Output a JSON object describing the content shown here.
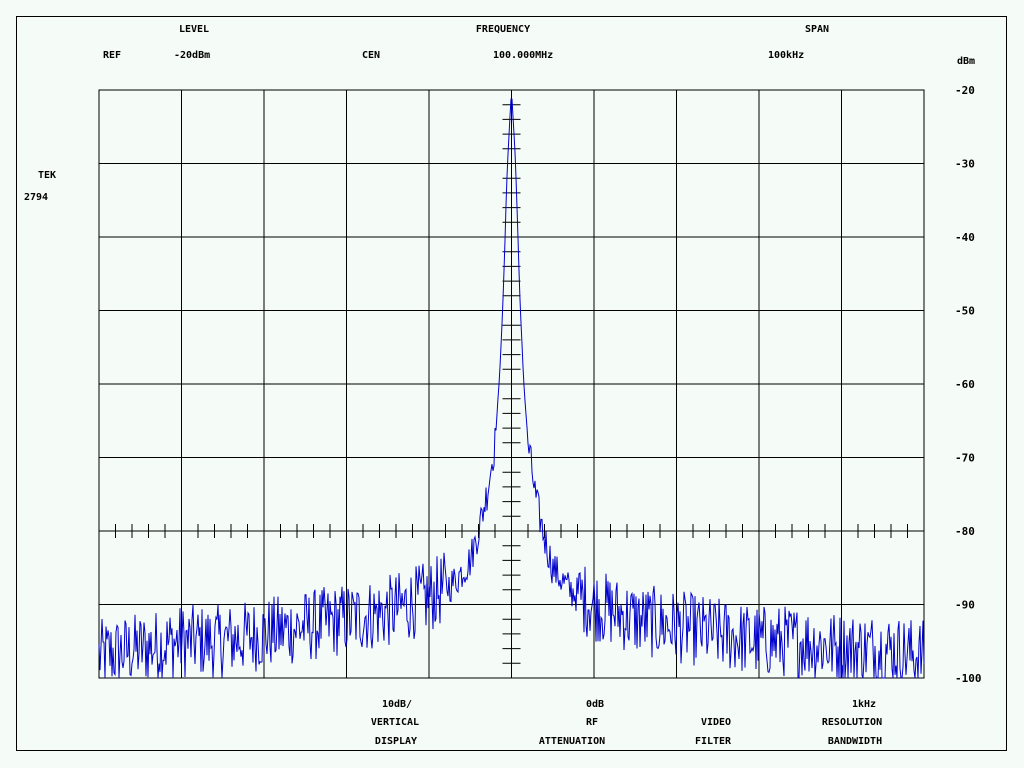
{
  "header": {
    "level_title": "LEVEL",
    "frequency_title": "FREQUENCY",
    "span_title": "SPAN",
    "ref_label": "REF",
    "ref_value": "-20dBm",
    "cen_label": "CEN",
    "cen_value": "100.000MHz",
    "span_value": "100kHz",
    "unit_label": "dBm"
  },
  "instrument": {
    "brand": "TEK",
    "model": "2794"
  },
  "footer": {
    "vertical_value": "10dB/",
    "vertical_line1": "VERTICAL",
    "vertical_line2": "DISPLAY",
    "rf_value": "0dB",
    "rf_line1": "RF",
    "rf_line2": "ATTENUATION",
    "video_line1": "VIDEO",
    "video_line2": "FILTER",
    "res_value": "1kHz",
    "res_line1": "RESOLUTION",
    "res_line2": "BANDWIDTH"
  },
  "colors": {
    "trace": "#0000cc",
    "grid": "#000000",
    "background": "#f5fbf6"
  },
  "chart_data": {
    "type": "line",
    "title": "",
    "xlabel": "",
    "ylabel": "dBm",
    "y_ticks": [
      "-20",
      "-30",
      "-40",
      "-50",
      "-60",
      "-70",
      "-80",
      "-90",
      "-100"
    ],
    "ylim": [
      -100,
      -20
    ],
    "xlim_khz": [
      -50,
      50
    ],
    "x_unit": "kHz offset from center",
    "grid": true,
    "series": [
      {
        "x": [
          -50,
          -45,
          -40,
          -35,
          -30,
          -25,
          -20,
          -15,
          -10,
          -7,
          -5,
          -4,
          -3,
          -2,
          -1.5,
          -1,
          -0.5,
          0,
          0.5,
          1,
          1.5,
          2,
          3,
          4,
          5,
          7,
          10,
          15,
          20,
          25,
          30,
          35,
          40,
          45,
          50
        ],
        "values": [
          -97,
          -96,
          -95,
          -95,
          -94,
          -93,
          -92,
          -91,
          -89,
          -87,
          -84,
          -80,
          -75,
          -68,
          -60,
          -48,
          -30,
          -20,
          -30,
          -48,
          -60,
          -68,
          -76,
          -81,
          -85,
          -88,
          -90,
          -92,
          -93,
          -94,
          -95,
          -95,
          -96,
          -96,
          -97
        ]
      }
    ]
  }
}
